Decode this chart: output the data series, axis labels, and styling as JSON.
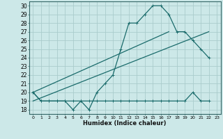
{
  "xlabel": "Humidex (Indice chaleur)",
  "bg_color": "#cce8e8",
  "grid_color": "#aacccc",
  "line_color": "#1a6b6b",
  "xlim": [
    -0.5,
    23.5
  ],
  "ylim": [
    17.5,
    30.5
  ],
  "xticks": [
    0,
    1,
    2,
    3,
    4,
    5,
    6,
    7,
    8,
    9,
    10,
    11,
    12,
    13,
    14,
    15,
    16,
    17,
    18,
    19,
    20,
    21,
    22,
    23
  ],
  "yticks": [
    18,
    19,
    20,
    21,
    22,
    23,
    24,
    25,
    26,
    27,
    28,
    29,
    30
  ],
  "curve_main_x": [
    0,
    1,
    2,
    3,
    4,
    5,
    6,
    7,
    8,
    9,
    10,
    11,
    12,
    13,
    14,
    15,
    16,
    17,
    18,
    19,
    20,
    21,
    22
  ],
  "curve_main_y": [
    20,
    19,
    19,
    19,
    19,
    18,
    19,
    18,
    20,
    21,
    22,
    25,
    28,
    28,
    29,
    30,
    30,
    29,
    27,
    27,
    26,
    25,
    24
  ],
  "curve_flat_x": [
    0,
    1,
    2,
    3,
    4,
    5,
    6,
    7,
    8,
    9,
    10,
    11,
    12,
    13,
    14,
    15,
    16,
    17,
    18,
    19,
    20,
    21,
    22
  ],
  "curve_flat_y": [
    20,
    19,
    19,
    19,
    19,
    19,
    19,
    19,
    19,
    19,
    19,
    19,
    19,
    19,
    19,
    19,
    19,
    19,
    19,
    19,
    20,
    19,
    19
  ],
  "line1_x": [
    0,
    17
  ],
  "line1_y": [
    20,
    27
  ],
  "line2_x": [
    0,
    22
  ],
  "line2_y": [
    19,
    27
  ]
}
